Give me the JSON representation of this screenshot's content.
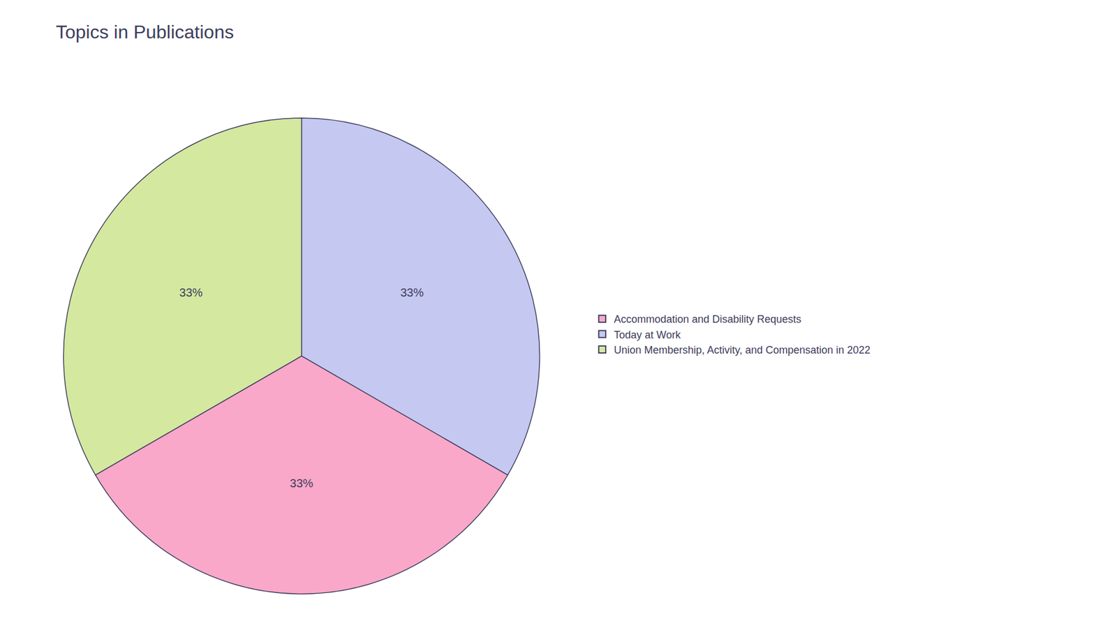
{
  "chart_data": {
    "type": "pie",
    "title": "Topics in Publications",
    "categories": [
      "Accommodation and Disability Requests",
      "Today at Work",
      "Union Membership, Activity, and Compensation in 2022"
    ],
    "values": [
      33,
      33,
      33
    ],
    "value_labels": [
      "33%",
      "33%",
      "33%"
    ],
    "colors": [
      "#F9A8C9",
      "#C5C8F0",
      "#D4E8A0"
    ],
    "data_labels": true,
    "legend": "right"
  }
}
